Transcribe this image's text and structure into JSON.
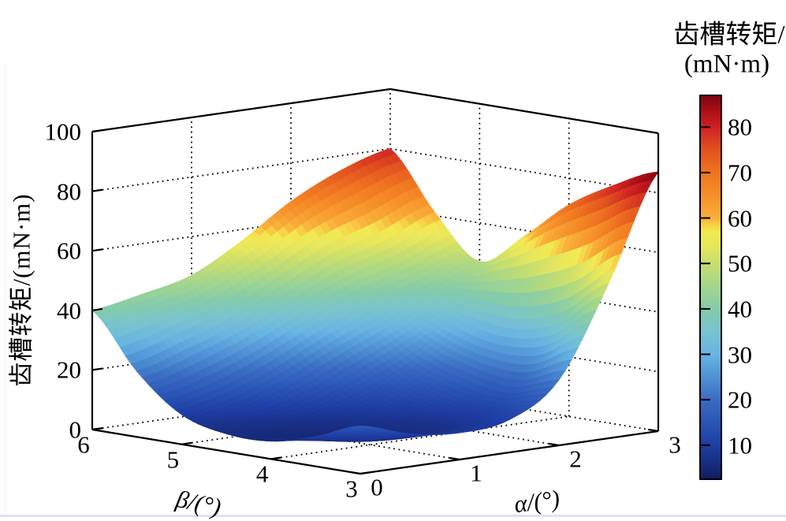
{
  "figure": {
    "z_axis": {
      "label": "齿槽转矩/(mN·m)",
      "ticks": [
        "0",
        "20",
        "40",
        "60",
        "80",
        "100"
      ]
    },
    "x_axis": {
      "label": "α/(°)",
      "ticks": [
        "0",
        "1",
        "2",
        "3"
      ]
    },
    "y_axis": {
      "label": "β/(°)",
      "ticks": [
        "6",
        "5",
        "4",
        "3"
      ]
    },
    "colorbar": {
      "title_line1": "齿槽转矩/",
      "title_line2": "(mN·m)",
      "ticks": [
        "80",
        "70",
        "60",
        "50",
        "40",
        "30",
        "20",
        "10"
      ]
    }
  },
  "chart_data": {
    "type": "surface",
    "x_label": "α/(°)",
    "x_range": [
      0,
      3
    ],
    "x_ticks": [
      0,
      1,
      2,
      3
    ],
    "y_label": "β/(°)",
    "y_range": [
      3,
      6
    ],
    "y_ticks": [
      6,
      5,
      4,
      3
    ],
    "z_label": "齿槽转矩/(mN·m)",
    "z_range": [
      0,
      100
    ],
    "z_ticks": [
      0,
      20,
      40,
      60,
      80,
      100
    ],
    "grid": "dotted",
    "colorbar_ticks": [
      10,
      20,
      30,
      40,
      50,
      60,
      70,
      80
    ],
    "colorbar_range": [
      2.5,
      87
    ],
    "colormap": [
      [
        2.5,
        "#141b60"
      ],
      [
        6,
        "#182d7f"
      ],
      [
        10,
        "#1e3da4"
      ],
      [
        15,
        "#2a55b5"
      ],
      [
        20,
        "#3a6cc3"
      ],
      [
        25,
        "#4f92d4"
      ],
      [
        30,
        "#68b4e2"
      ],
      [
        35,
        "#79c3cf"
      ],
      [
        40,
        "#85cbab"
      ],
      [
        45,
        "#a3d68c"
      ],
      [
        50,
        "#c8de6e"
      ],
      [
        54,
        "#e7e75c"
      ],
      [
        57,
        "#f2ea52"
      ],
      [
        58.5,
        "#f7cf46"
      ],
      [
        60,
        "#f9b03a"
      ],
      [
        65,
        "#f68f2a"
      ],
      [
        70,
        "#ef7420"
      ],
      [
        75,
        "#e2511f"
      ],
      [
        80,
        "#cf2124"
      ],
      [
        84,
        "#a60d16"
      ],
      [
        87,
        "#7c040f"
      ]
    ],
    "alpha_values": [
      0,
      0.5,
      1,
      1.5,
      2,
      2.5,
      3
    ],
    "beta_values": [
      3,
      3.5,
      4,
      4.5,
      5,
      5.5,
      6
    ],
    "z_grid": [
      [
        16,
        11,
        9,
        11,
        22,
        52,
        87
      ],
      [
        10,
        6,
        6,
        9,
        17,
        40,
        80
      ],
      [
        6,
        5,
        7,
        11,
        19,
        35,
        71
      ],
      [
        6,
        7,
        10,
        16,
        24,
        36,
        58
      ],
      [
        10,
        13,
        19,
        27,
        34,
        40,
        47
      ],
      [
        22,
        27,
        33,
        41,
        49,
        54,
        61
      ],
      [
        40,
        43,
        47,
        56,
        67,
        75,
        80
      ]
    ]
  }
}
